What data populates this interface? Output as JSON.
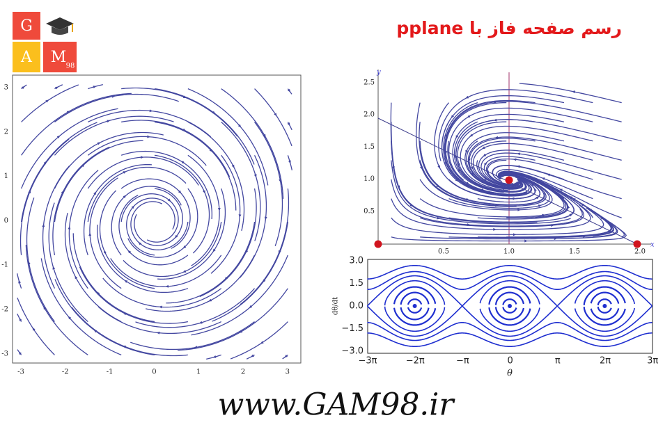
{
  "logo": {
    "letters": [
      "G",
      "A",
      "M"
    ],
    "subscript": "98"
  },
  "title": "رسم صفحه فاز با pplane",
  "plots": [
    {
      "xticks": [
        "-3",
        "-2",
        "-1",
        "0",
        "1",
        "2",
        "3"
      ],
      "yticks": [
        "3",
        "2",
        "1",
        "0",
        "-1",
        "-2",
        "-3"
      ]
    },
    {
      "xticks": [
        "0.5",
        "1.0",
        "1.5",
        "2.0"
      ],
      "yticks": [
        "2.5",
        "2.0",
        "1.5",
        "1.0",
        "0.5"
      ],
      "xlabel": "x",
      "ylabel": "y"
    },
    {
      "xticks": [
        "−3π",
        "−2π",
        "−π",
        "0",
        "π",
        "2π",
        "3π"
      ],
      "yticks": [
        "3.0",
        "1.5",
        "0.0",
        "−1.5",
        "−3.0"
      ],
      "xlabel": "θ",
      "ylabel": "dθ/dt"
    }
  ],
  "footer": "www.GAM98.ir"
}
